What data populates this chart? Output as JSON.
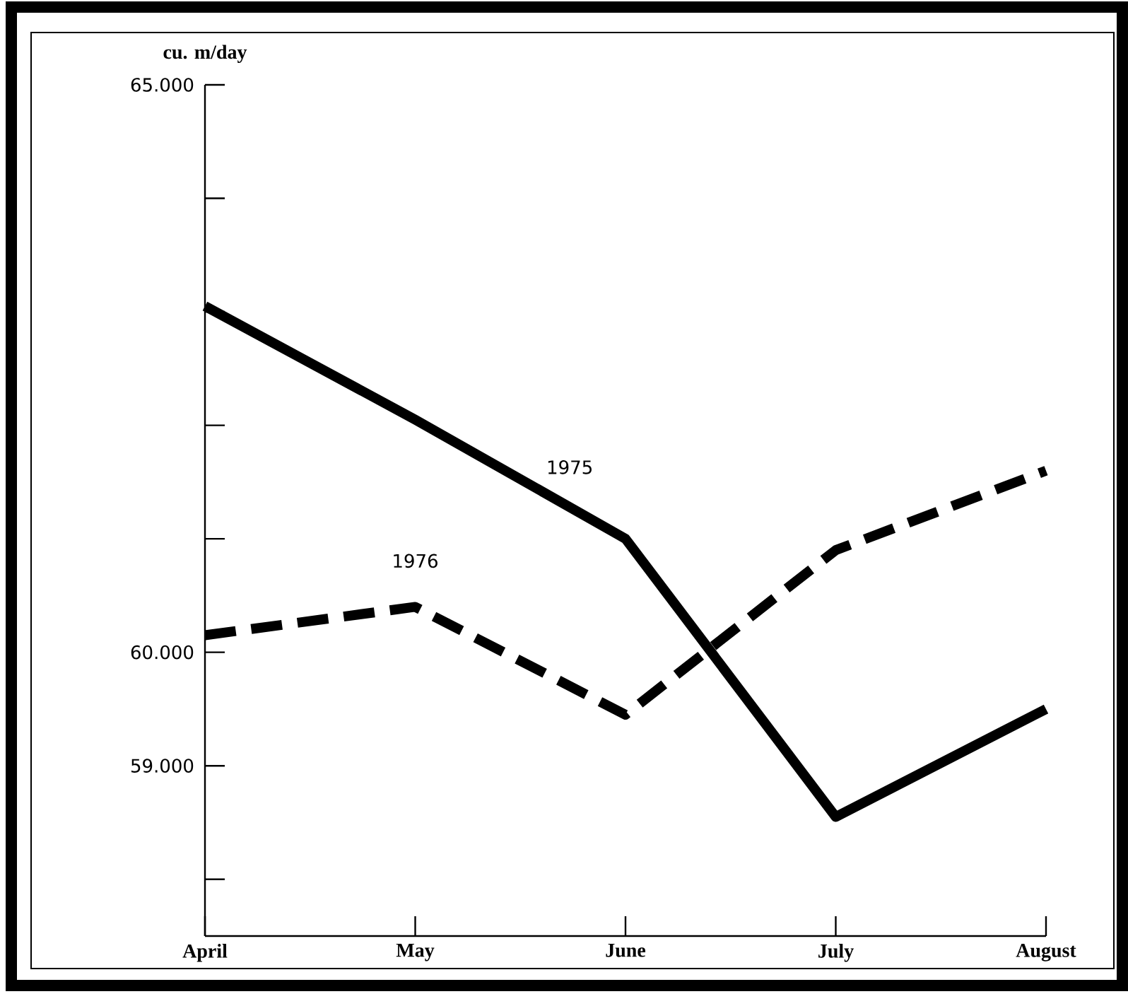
{
  "chart_data": {
    "type": "line",
    "ylabel": "cu. m/day",
    "categories": [
      "April",
      "May",
      "June",
      "July",
      "August"
    ],
    "ylim": [
      57.5,
      65
    ],
    "yticks": [
      {
        "value": 65,
        "label": "65.000"
      },
      {
        "value": 64,
        "label": null
      },
      {
        "value": 63,
        "label": null
      },
      {
        "value": 62,
        "label": null
      },
      {
        "value": 61,
        "label": null
      },
      {
        "value": 60,
        "label": "60.000"
      },
      {
        "value": 59,
        "label": "59.000"
      },
      {
        "value": 58,
        "label": null
      }
    ],
    "series": [
      {
        "name": "1975",
        "color": "#000000",
        "line_style": "solid",
        "values": [
          63.05,
          62.05,
          61.0,
          58.55,
          59.5
        ]
      },
      {
        "name": "1976",
        "color": "#000000",
        "line_style": "dashed",
        "values": [
          60.15,
          60.4,
          59.45,
          60.9,
          61.6
        ]
      }
    ]
  }
}
